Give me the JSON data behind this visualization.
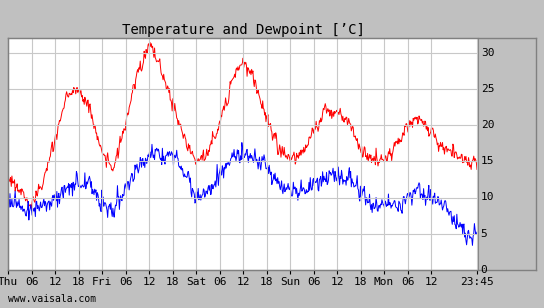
{
  "title": "Temperature and Dewpoint [’C]",
  "xtick_labels": [
    "Thu",
    "06",
    "12",
    "18",
    "Fri",
    "06",
    "12",
    "18",
    "Sat",
    "06",
    "12",
    "18",
    "Sun",
    "06",
    "12",
    "18",
    "Mon",
    "06",
    "12",
    "23:45"
  ],
  "xtick_positions": [
    0,
    6,
    12,
    18,
    24,
    30,
    36,
    42,
    48,
    54,
    60,
    66,
    72,
    78,
    84,
    90,
    96,
    102,
    108,
    119.75
  ],
  "ytick_labels": [
    "0",
    "5",
    "10",
    "15",
    "20",
    "25",
    "30"
  ],
  "ytick_positions": [
    0,
    5,
    10,
    15,
    20,
    25,
    30
  ],
  "ylim": [
    0,
    32
  ],
  "xlim": [
    0,
    120
  ],
  "background_color": "#c0c0c0",
  "plot_bg_color": "#ffffff",
  "grid_color": "#c8c8c8",
  "temp_color": "#ff0000",
  "dewp_color": "#0000ff",
  "watermark": "www.vaisala.com",
  "title_fontsize": 10,
  "tick_fontsize": 8,
  "watermark_fontsize": 7,
  "temp_keypoints_t": [
    0,
    3,
    6,
    9,
    12,
    15,
    18,
    21,
    24,
    27,
    30,
    33,
    36,
    39,
    42,
    45,
    48,
    51,
    54,
    57,
    60,
    63,
    66,
    69,
    72,
    75,
    78,
    81,
    84,
    87,
    90,
    93,
    96,
    99,
    102,
    105,
    108,
    111,
    114,
    117,
    119.75
  ],
  "temp_keypoints_v": [
    13,
    11,
    9,
    12,
    18,
    24,
    25,
    22,
    16,
    14,
    20,
    27,
    31,
    28,
    23,
    18,
    15,
    16,
    20,
    26,
    29,
    26,
    21,
    17,
    15,
    16,
    19,
    22,
    22,
    20,
    17,
    15,
    15,
    17,
    20,
    21,
    19,
    17,
    16,
    15,
    15
  ],
  "dewp_keypoints_t": [
    0,
    3,
    6,
    9,
    12,
    15,
    18,
    21,
    24,
    27,
    30,
    33,
    36,
    39,
    42,
    45,
    48,
    51,
    54,
    57,
    60,
    63,
    66,
    69,
    72,
    75,
    78,
    81,
    84,
    87,
    90,
    93,
    96,
    99,
    102,
    105,
    108,
    111,
    114,
    117,
    119.75
  ],
  "dewp_keypoints_v": [
    10,
    9,
    8,
    9,
    10,
    11,
    12,
    12,
    9,
    8,
    11,
    14,
    16,
    16,
    16,
    14,
    10,
    11,
    13,
    15,
    16,
    15,
    14,
    12,
    11,
    11,
    12,
    13,
    13,
    13,
    11,
    9,
    9,
    9,
    10,
    11,
    10,
    9,
    7,
    5,
    5
  ],
  "noise_seed_temp": 1,
  "noise_seed_dewp": 2,
  "noise_amp_temp": 0.6,
  "noise_amp_dewp": 0.8
}
